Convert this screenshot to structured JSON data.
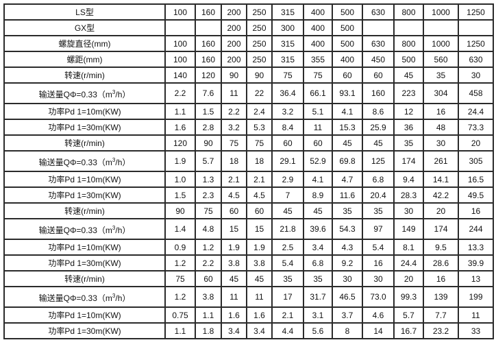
{
  "table": {
    "rows": [
      {
        "label": "LS型",
        "values": [
          "100",
          "160",
          "200",
          "250",
          "315",
          "400",
          "500",
          "630",
          "800",
          "1000",
          "1250"
        ]
      },
      {
        "label": "GX型",
        "values": [
          "",
          "",
          "200",
          "250",
          "300",
          "400",
          "500",
          "",
          "",
          "",
          ""
        ]
      },
      {
        "label": "螺旋直径(mm)",
        "values": [
          "100",
          "160",
          "200",
          "250",
          "315",
          "400",
          "500",
          "630",
          "800",
          "1000",
          "1250"
        ]
      },
      {
        "label": "螺距(mm)",
        "values": [
          "100",
          "160",
          "200",
          "250",
          "315",
          "355",
          "400",
          "450",
          "500",
          "560",
          "630"
        ]
      },
      {
        "label": "转速(r/min)",
        "values": [
          "140",
          "120",
          "90",
          "90",
          "75",
          "75",
          "60",
          "60",
          "45",
          "35",
          "30"
        ]
      },
      {
        "label": "输送量QΦ=0.33（m",
        "sup": "3",
        "label_suffix": "/h）",
        "values": [
          "2.2",
          "7.6",
          "11",
          "22",
          "36.4",
          "66.1",
          "93.1",
          "160",
          "223",
          "304",
          "458"
        ]
      },
      {
        "label": "功率Pd 1=10m(KW)",
        "values": [
          "1.1",
          "1.5",
          "2.2",
          "2.4",
          "3.2",
          "5.1",
          "4.1",
          "8.6",
          "12",
          "16",
          "24.4"
        ]
      },
      {
        "label": "功率Pd 1=30m(KW)",
        "values": [
          "1.6",
          "2.8",
          "3.2",
          "5.3",
          "8.4",
          "11",
          "15.3",
          "25.9",
          "36",
          "48",
          "73.3"
        ]
      },
      {
        "label": "转速(r/min)",
        "values": [
          "120",
          "90",
          "75",
          "75",
          "60",
          "60",
          "45",
          "45",
          "35",
          "30",
          "20"
        ]
      },
      {
        "label": "输送量QΦ=0.33（m",
        "sup": "3",
        "label_suffix": "/h）",
        "values": [
          "1.9",
          "5.7",
          "18",
          "18",
          "29.1",
          "52.9",
          "69.8",
          "125",
          "174",
          "261",
          "305"
        ]
      },
      {
        "label": "功率Pd 1=10m(KW)",
        "values": [
          "1.0",
          "1.3",
          "2.1",
          "2.1",
          "2.9",
          "4.1",
          "4.7",
          "6.8",
          "9.4",
          "14.1",
          "16.5"
        ]
      },
      {
        "label": "功率Pd 1=30m(KW)",
        "values": [
          "1.5",
          "2.3",
          "4.5",
          "4.5",
          "7",
          "8.9",
          "11.6",
          "20.4",
          "28.3",
          "42.2",
          "49.5"
        ]
      },
      {
        "label": "转速(r/min)",
        "values": [
          "90",
          "75",
          "60",
          "60",
          "45",
          "45",
          "35",
          "35",
          "30",
          "20",
          "16"
        ]
      },
      {
        "label": "输送量QΦ=0.33（m",
        "sup": "3",
        "label_suffix": "/h）",
        "values": [
          "1.4",
          "4.8",
          "15",
          "15",
          "21.8",
          "39.6",
          "54.3",
          "97",
          "149",
          "174",
          "244"
        ]
      },
      {
        "label": "功率Pd 1=10m(KW)",
        "values": [
          "0.9",
          "1.2",
          "1.9",
          "1.9",
          "2.5",
          "3.4",
          "4.3",
          "5.4",
          "8.1",
          "9.5",
          "13.3"
        ]
      },
      {
        "label": "功率Pd 1=30m(KW)",
        "values": [
          "1.2",
          "2.2",
          "3.8",
          "3.8",
          "5.4",
          "6.8",
          "9.2",
          "16",
          "24.4",
          "28.6",
          "39.9"
        ]
      },
      {
        "label": "转速(r/min)",
        "values": [
          "75",
          "60",
          "45",
          "45",
          "35",
          "35",
          "30",
          "30",
          "20",
          "16",
          "13"
        ]
      },
      {
        "label": "输送量QΦ=0.33（m",
        "sup": "3",
        "label_suffix": "/h）",
        "values": [
          "1.2",
          "3.8",
          "11",
          "11",
          "17",
          "31.7",
          "46.5",
          "73.0",
          "99.3",
          "139",
          "199"
        ]
      },
      {
        "label": "功率Pd 1=10m(KW)",
        "values": [
          "0.75",
          "1.1",
          "1.6",
          "1.6",
          "2.1",
          "3.1",
          "3.7",
          "4.6",
          "5.7",
          "7.7",
          "11"
        ]
      },
      {
        "label": "功率Pd 1=30m(KW)",
        "values": [
          "1.1",
          "1.8",
          "3.4",
          "3.4",
          "4.4",
          "5.6",
          "8",
          "14",
          "16.7",
          "23.2",
          "33"
        ]
      }
    ]
  }
}
